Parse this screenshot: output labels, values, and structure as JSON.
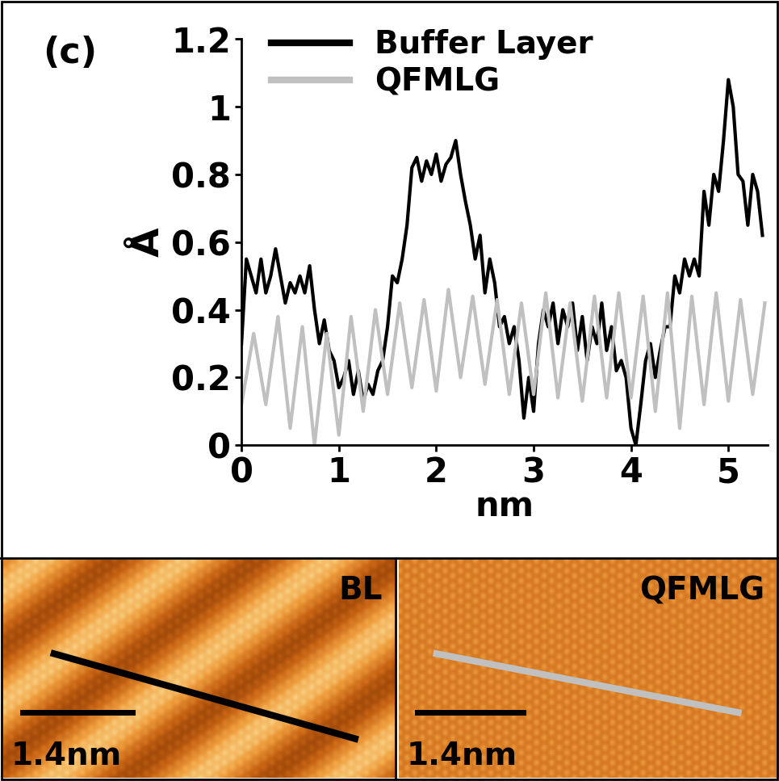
{
  "chart_data": {
    "type": "line",
    "panel_label": "(c)",
    "x_label": "nm",
    "y_label": "Å",
    "xlim": [
      0,
      5.4
    ],
    "xticks": [
      0,
      1,
      2,
      3,
      4,
      5
    ],
    "ylim": [
      0,
      1.2
    ],
    "yticks": [
      0,
      0.2,
      0.4,
      0.6,
      0.8,
      1,
      1.2
    ],
    "legend": "upper left",
    "grid": false,
    "series": [
      {
        "name": "Buffer Layer",
        "color": "#000000",
        "x": [
          0,
          0.05,
          0.1,
          0.15,
          0.2,
          0.25,
          0.3,
          0.35,
          0.4,
          0.45,
          0.5,
          0.55,
          0.6,
          0.65,
          0.7,
          0.75,
          0.8,
          0.85,
          0.9,
          0.95,
          1.0,
          1.05,
          1.1,
          1.15,
          1.2,
          1.25,
          1.3,
          1.35,
          1.4,
          1.45,
          1.5,
          1.55,
          1.6,
          1.65,
          1.7,
          1.75,
          1.8,
          1.85,
          1.9,
          1.95,
          2.0,
          2.05,
          2.1,
          2.15,
          2.2,
          2.25,
          2.3,
          2.35,
          2.4,
          2.45,
          2.5,
          2.55,
          2.6,
          2.65,
          2.7,
          2.75,
          2.8,
          2.85,
          2.9,
          2.95,
          3.0,
          3.05,
          3.1,
          3.15,
          3.2,
          3.25,
          3.3,
          3.35,
          3.4,
          3.45,
          3.5,
          3.55,
          3.6,
          3.65,
          3.7,
          3.75,
          3.8,
          3.85,
          3.9,
          3.95,
          4.0,
          4.05,
          4.1,
          4.15,
          4.2,
          4.25,
          4.3,
          4.35,
          4.4,
          4.45,
          4.5,
          4.55,
          4.6,
          4.65,
          4.7,
          4.75,
          4.8,
          4.85,
          4.9,
          4.95,
          5.0,
          5.05,
          5.1,
          5.15,
          5.2,
          5.25,
          5.3,
          5.35
        ],
        "values": [
          0.3,
          0.55,
          0.5,
          0.45,
          0.55,
          0.45,
          0.5,
          0.58,
          0.5,
          0.42,
          0.48,
          0.45,
          0.5,
          0.45,
          0.53,
          0.4,
          0.3,
          0.37,
          0.28,
          0.25,
          0.17,
          0.2,
          0.25,
          0.15,
          0.22,
          0.13,
          0.18,
          0.15,
          0.22,
          0.25,
          0.35,
          0.5,
          0.48,
          0.55,
          0.65,
          0.82,
          0.85,
          0.78,
          0.84,
          0.8,
          0.86,
          0.78,
          0.83,
          0.85,
          0.9,
          0.8,
          0.72,
          0.65,
          0.55,
          0.62,
          0.45,
          0.55,
          0.48,
          0.35,
          0.38,
          0.3,
          0.35,
          0.25,
          0.08,
          0.2,
          0.1,
          0.3,
          0.4,
          0.35,
          0.42,
          0.3,
          0.4,
          0.35,
          0.42,
          0.28,
          0.38,
          0.25,
          0.35,
          0.3,
          0.42,
          0.28,
          0.35,
          0.22,
          0.25,
          0.2,
          0.05,
          0.0,
          0.12,
          0.25,
          0.3,
          0.2,
          0.28,
          0.35,
          0.35,
          0.5,
          0.45,
          0.55,
          0.5,
          0.55,
          0.5,
          0.75,
          0.65,
          0.8,
          0.75,
          0.9,
          1.08,
          1.0,
          0.8,
          0.78,
          0.65,
          0.8,
          0.75,
          0.62
        ]
      },
      {
        "name": "QFMLG",
        "color": "#c0c0c0",
        "x": [
          0,
          0.125,
          0.25,
          0.375,
          0.5,
          0.625,
          0.75,
          0.875,
          1.0,
          1.125,
          1.25,
          1.375,
          1.5,
          1.625,
          1.75,
          1.875,
          2.0,
          2.125,
          2.25,
          2.375,
          2.5,
          2.625,
          2.75,
          2.875,
          3.0,
          3.125,
          3.25,
          3.375,
          3.5,
          3.625,
          3.75,
          3.875,
          4.0,
          4.125,
          4.25,
          4.375,
          4.5,
          4.625,
          4.75,
          4.875,
          5.0,
          5.125,
          5.25,
          5.375
        ],
        "values": [
          0.12,
          0.33,
          0.12,
          0.38,
          0.05,
          0.35,
          0.0,
          0.33,
          0.03,
          0.38,
          0.1,
          0.4,
          0.15,
          0.42,
          0.17,
          0.43,
          0.16,
          0.46,
          0.2,
          0.44,
          0.18,
          0.43,
          0.15,
          0.42,
          0.15,
          0.45,
          0.14,
          0.42,
          0.13,
          0.44,
          0.14,
          0.45,
          0.14,
          0.44,
          0.1,
          0.45,
          0.05,
          0.44,
          0.12,
          0.45,
          0.13,
          0.43,
          0.15,
          0.42
        ]
      }
    ]
  },
  "images": [
    {
      "label": "BL",
      "scale_bar": "1.4nm",
      "line_color": "#000000"
    },
    {
      "label": "QFMLG",
      "scale_bar": "1.4nm",
      "line_color": "#c0c0c0"
    }
  ]
}
